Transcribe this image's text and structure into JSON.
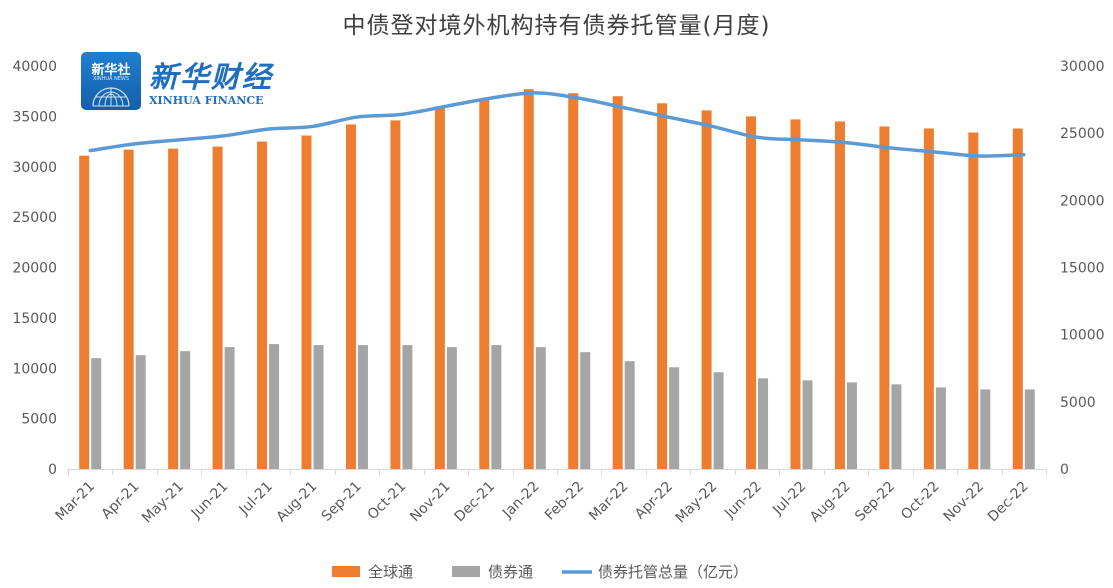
{
  "chart_data": {
    "type": "bar",
    "title": "中债登对境外机构持有债券托管量(月度)",
    "categories": [
      "Mar-21",
      "Apr-21",
      "May-21",
      "Jun-21",
      "Jul-21",
      "Aug-21",
      "Sep-21",
      "Oct-21",
      "Nov-21",
      "Dec-21",
      "Jan-22",
      "Feb-22",
      "Mar-22",
      "Apr-22",
      "May-22",
      "Jun-22",
      "Jul-22",
      "Aug-22",
      "Sep-22",
      "Oct-22",
      "Nov-22",
      "Dec-22"
    ],
    "series": [
      {
        "name": "全球通",
        "type": "bar",
        "axis": "left",
        "color": "#ed7d31",
        "values": [
          31100,
          31700,
          31800,
          32000,
          32500,
          33100,
          34200,
          34600,
          36000,
          36800,
          37700,
          37300,
          37000,
          36300,
          35600,
          35000,
          34700,
          34500,
          34000,
          33800,
          33400,
          33800
        ]
      },
      {
        "name": "债券通",
        "type": "bar",
        "axis": "left",
        "color": "#a5a5a5",
        "values": [
          11000,
          11300,
          11700,
          12100,
          12400,
          12300,
          12300,
          12300,
          12100,
          12300,
          12100,
          11600,
          10700,
          10100,
          9600,
          9000,
          8800,
          8600,
          8400,
          8100,
          7900,
          7900
        ]
      },
      {
        "name": "债券托管总量（亿元）",
        "type": "line",
        "axis": "right",
        "color": "#5b9bd5",
        "values": [
          23700,
          24200,
          24500,
          24800,
          25300,
          25500,
          26200,
          26400,
          27000,
          27600,
          28000,
          27600,
          26900,
          26200,
          25500,
          24700,
          24500,
          24300,
          23900,
          23600,
          23300,
          23400
        ]
      }
    ],
    "left_axis": {
      "min": 0,
      "max": 40000,
      "step": 5000,
      "ticks": [
        "0",
        "5000",
        "10000",
        "15000",
        "20000",
        "25000",
        "30000",
        "35000",
        "40000"
      ]
    },
    "right_axis": {
      "min": 0,
      "max": 30000,
      "step": 5000,
      "ticks": [
        "0",
        "5000",
        "10000",
        "15000",
        "20000",
        "25000",
        "30000"
      ]
    },
    "xlabel": "",
    "ylabel": "",
    "grid": false,
    "legend_position": "bottom"
  },
  "logo": {
    "box_cn": "新华社",
    "box_en": "XINHUA NEWS",
    "brand_cn": "新华财经",
    "brand_en": "XINHUA FINANCE"
  }
}
